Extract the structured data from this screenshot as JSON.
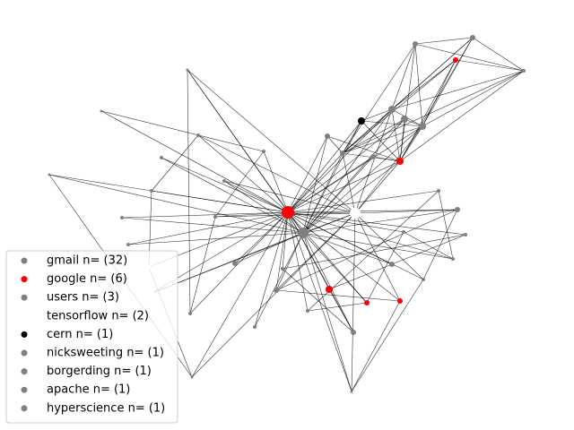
{
  "legend": {
    "items": [
      {
        "label": "gmail n= (32)",
        "color": "#808080"
      },
      {
        "label": "google n= (6)",
        "color": "#ff0000"
      },
      {
        "label": "users n= (3)",
        "color": "#808080"
      },
      {
        "label": "tensorflow n= (2)",
        "color": "#ffffff"
      },
      {
        "label": "cern n= (1)",
        "color": "#000000"
      },
      {
        "label": "nicksweeting n= (1)",
        "color": "#808080"
      },
      {
        "label": "borgerding n= (1)",
        "color": "#808080"
      },
      {
        "label": "apache n= (1)",
        "color": "#808080"
      },
      {
        "label": "hyperscience n= (1)",
        "color": "#808080"
      }
    ]
  }
}
